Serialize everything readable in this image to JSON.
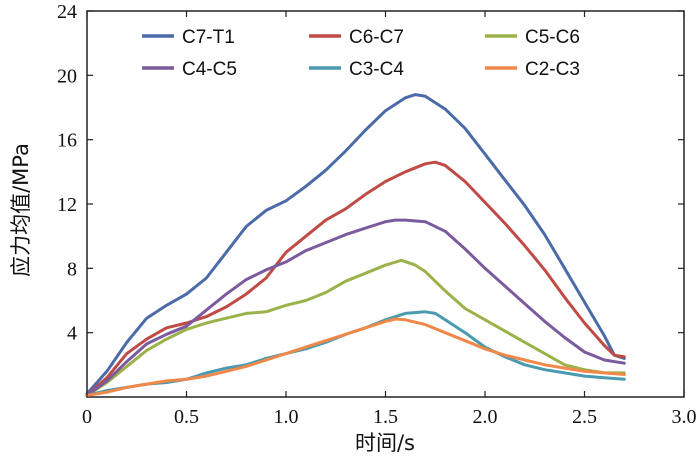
{
  "chart_data": {
    "type": "line",
    "title": "",
    "xlabel": "时间/s",
    "ylabel": "应力均值/MPa",
    "xlim": [
      0,
      3.0
    ],
    "ylim": [
      0,
      24
    ],
    "xticks": [
      0,
      0.5,
      1.0,
      1.5,
      2.0,
      2.5,
      3.0
    ],
    "xtick_labels": [
      "0",
      "0.5",
      "1.0",
      "1.5",
      "2.0",
      "2.5",
      "3.0"
    ],
    "yticks": [
      4,
      8,
      12,
      16,
      20,
      24
    ],
    "ytick_labels": [
      "4",
      "8",
      "12",
      "16",
      "20",
      "24"
    ],
    "grid": false,
    "legend_position": "top",
    "series": [
      {
        "name": "C7-T1",
        "color": "#4a6aa8",
        "x": [
          0,
          0.1,
          0.2,
          0.3,
          0.4,
          0.5,
          0.6,
          0.7,
          0.8,
          0.9,
          1.0,
          1.1,
          1.2,
          1.3,
          1.4,
          1.5,
          1.6,
          1.65,
          1.7,
          1.8,
          1.9,
          2.0,
          2.1,
          2.2,
          2.3,
          2.4,
          2.5,
          2.6,
          2.65,
          2.7
        ],
        "y": [
          0.2,
          1.6,
          3.4,
          4.9,
          5.7,
          6.4,
          7.4,
          9.0,
          10.6,
          11.6,
          12.2,
          13.1,
          14.1,
          15.3,
          16.6,
          17.8,
          18.6,
          18.8,
          18.7,
          17.9,
          16.7,
          15.1,
          13.5,
          11.9,
          10.1,
          8.0,
          5.9,
          3.8,
          2.6,
          2.4
        ]
      },
      {
        "name": "C6-C7",
        "color": "#c04a45",
        "x": [
          0,
          0.1,
          0.2,
          0.3,
          0.4,
          0.5,
          0.6,
          0.7,
          0.8,
          0.9,
          1.0,
          1.1,
          1.2,
          1.3,
          1.4,
          1.5,
          1.6,
          1.7,
          1.75,
          1.8,
          1.9,
          2.0,
          2.1,
          2.2,
          2.3,
          2.4,
          2.5,
          2.6,
          2.65,
          2.7
        ],
        "y": [
          0.1,
          1.2,
          2.7,
          3.6,
          4.3,
          4.6,
          5.0,
          5.6,
          6.4,
          7.4,
          9.0,
          10.0,
          11.0,
          11.7,
          12.6,
          13.4,
          14.0,
          14.5,
          14.6,
          14.4,
          13.4,
          12.1,
          10.8,
          9.4,
          7.9,
          6.2,
          4.6,
          3.2,
          2.6,
          2.5
        ]
      },
      {
        "name": "C5-C6",
        "color": "#9bb24a",
        "x": [
          0,
          0.1,
          0.2,
          0.3,
          0.4,
          0.5,
          0.6,
          0.7,
          0.8,
          0.9,
          1.0,
          1.1,
          1.2,
          1.3,
          1.4,
          1.5,
          1.58,
          1.65,
          1.7,
          1.8,
          1.9,
          2.0,
          2.1,
          2.2,
          2.3,
          2.4,
          2.5,
          2.6,
          2.7
        ],
        "y": [
          0.1,
          0.9,
          1.9,
          2.9,
          3.6,
          4.2,
          4.6,
          4.9,
          5.2,
          5.3,
          5.7,
          6.0,
          6.5,
          7.2,
          7.7,
          8.2,
          8.5,
          8.2,
          7.8,
          6.6,
          5.5,
          4.8,
          4.1,
          3.4,
          2.7,
          2.0,
          1.7,
          1.5,
          1.5
        ]
      },
      {
        "name": "C4-C5",
        "color": "#7b5b9e",
        "x": [
          0,
          0.1,
          0.2,
          0.3,
          0.4,
          0.5,
          0.6,
          0.7,
          0.8,
          0.9,
          1.0,
          1.1,
          1.2,
          1.3,
          1.4,
          1.5,
          1.55,
          1.6,
          1.7,
          1.8,
          1.9,
          2.0,
          2.1,
          2.2,
          2.3,
          2.4,
          2.5,
          2.6,
          2.7
        ],
        "y": [
          0.1,
          1.0,
          2.2,
          3.3,
          3.9,
          4.4,
          5.4,
          6.4,
          7.3,
          7.9,
          8.4,
          9.1,
          9.6,
          10.1,
          10.5,
          10.9,
          11.0,
          11.0,
          10.9,
          10.3,
          9.2,
          8.0,
          6.9,
          5.8,
          4.7,
          3.7,
          2.8,
          2.3,
          2.1
        ]
      },
      {
        "name": "C3-C4",
        "color": "#4a9ab0",
        "x": [
          0,
          0.1,
          0.2,
          0.3,
          0.4,
          0.5,
          0.6,
          0.7,
          0.8,
          0.9,
          1.0,
          1.1,
          1.2,
          1.3,
          1.4,
          1.5,
          1.6,
          1.7,
          1.75,
          1.8,
          1.9,
          2.0,
          2.1,
          2.2,
          2.3,
          2.4,
          2.5,
          2.6,
          2.7
        ],
        "y": [
          0.1,
          0.4,
          0.6,
          0.8,
          0.9,
          1.1,
          1.5,
          1.8,
          2.0,
          2.4,
          2.7,
          3.0,
          3.4,
          3.9,
          4.3,
          4.8,
          5.2,
          5.3,
          5.2,
          4.8,
          4.0,
          3.1,
          2.5,
          2.0,
          1.7,
          1.5,
          1.3,
          1.2,
          1.1
        ]
      },
      {
        "name": "C2-C3",
        "color": "#f0884a",
        "x": [
          0,
          0.1,
          0.2,
          0.3,
          0.4,
          0.5,
          0.6,
          0.7,
          0.8,
          0.9,
          1.0,
          1.1,
          1.2,
          1.3,
          1.4,
          1.5,
          1.55,
          1.6,
          1.7,
          1.8,
          1.9,
          2.0,
          2.1,
          2.2,
          2.3,
          2.4,
          2.5,
          2.6,
          2.7
        ],
        "y": [
          0.1,
          0.3,
          0.6,
          0.8,
          1.0,
          1.1,
          1.3,
          1.6,
          1.9,
          2.3,
          2.7,
          3.1,
          3.5,
          3.9,
          4.3,
          4.7,
          4.85,
          4.8,
          4.5,
          4.0,
          3.5,
          3.0,
          2.6,
          2.3,
          2.0,
          1.8,
          1.6,
          1.5,
          1.4
        ]
      }
    ]
  }
}
